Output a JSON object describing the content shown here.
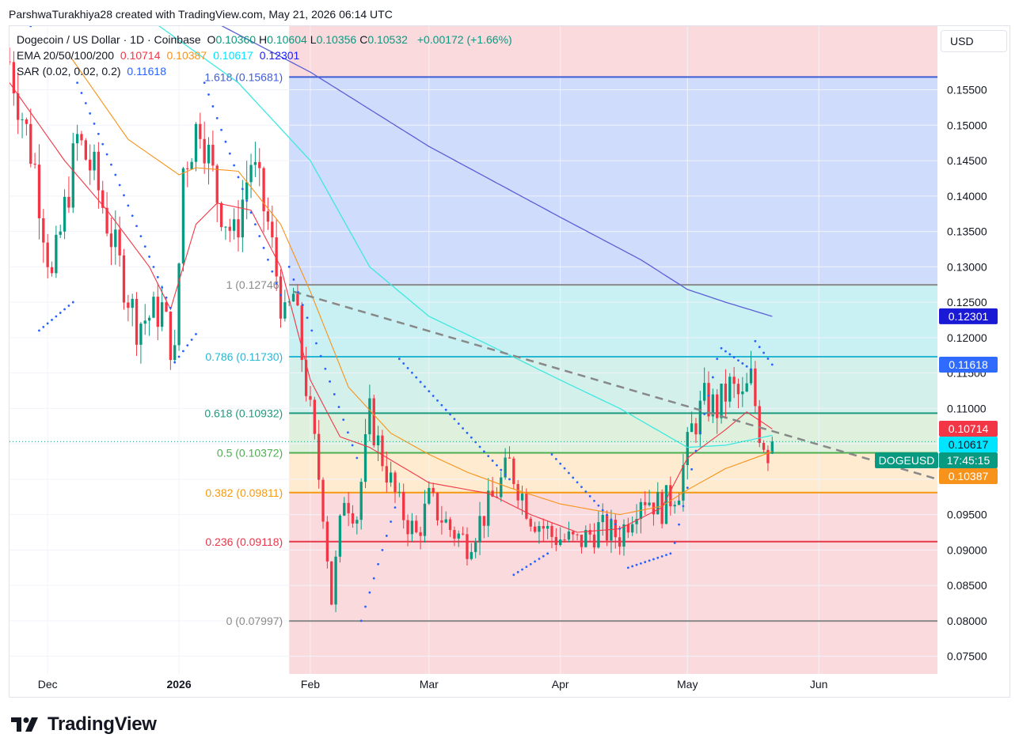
{
  "credit": "ParshwaTurakhiya28 created with TradingView.com, May 21, 2026 06:14 UTC",
  "legend": {
    "symbol": "Dogecoin / US Dollar · 1D · Coinbase",
    "ohlc": [
      {
        "k": "O",
        "v": "0.10360"
      },
      {
        "k": "H",
        "v": "0.10604"
      },
      {
        "k": "L",
        "v": "0.10356"
      },
      {
        "k": "C",
        "v": "0.10532"
      }
    ],
    "change": "+0.00172 (+1.66%)",
    "ema_label": "EMA 20/50/100/200",
    "ema_values": [
      {
        "v": "0.10714",
        "color": "#f23645"
      },
      {
        "v": "0.10387",
        "color": "#f7931a"
      },
      {
        "v": "0.10617",
        "color": "#00e5ff"
      },
      {
        "v": "0.12301",
        "color": "#1a1aff"
      }
    ],
    "sar_label": "SAR (0.02, 0.02, 0.2)",
    "sar_value": "0.11618"
  },
  "currency": "USD",
  "brand": "TradingView",
  "colors": {
    "up": "#089981",
    "down": "#f23645",
    "ema20": "#f23645",
    "ema50": "#f7931a",
    "ema100": "#3ee8e0",
    "ema200": "#5b5fd6",
    "sar": "#2962ff"
  },
  "chart_data": {
    "type": "candlestick",
    "title": "Dogecoin / US Dollar · 1D · Coinbase",
    "y_axis": {
      "ticks": [
        "0.15500",
        "0.15000",
        "0.14500",
        "0.14000",
        "0.13500",
        "0.13000",
        "0.12500",
        "0.12000",
        "0.11500",
        "0.11000",
        "0.10500",
        "0.10000",
        "0.09500",
        "0.09000",
        "0.08500",
        "0.08000",
        "0.07500"
      ],
      "range": [
        0.0725,
        0.164
      ]
    },
    "x_axis": {
      "ticks": [
        {
          "label": "Dec",
          "date": "2025-12-01"
        },
        {
          "label": "2026",
          "date": "2026-01-01",
          "bold": true
        },
        {
          "label": "Feb",
          "date": "2026-02-01"
        },
        {
          "label": "Mar",
          "date": "2026-03-01"
        },
        {
          "label": "Apr",
          "date": "2026-04-01"
        },
        {
          "label": "May",
          "date": "2026-05-01"
        },
        {
          "label": "Jun",
          "date": "2026-06-01"
        }
      ],
      "range": [
        "2025-11-22",
        "2026-06-29"
      ]
    },
    "fib": {
      "start_date": "2026-01-27",
      "levels": [
        {
          "ratio": "1.618",
          "value": 0.15681,
          "label": "1.618 (0.15681)",
          "color": "#3f5ed4",
          "fill": "#d0dcfb"
        },
        {
          "ratio": "1",
          "value": 0.12746,
          "label": "1 (0.12746)",
          "color": "#8a8a8a",
          "fill": "#e5e5e5"
        },
        {
          "ratio": "0.786",
          "value": 0.1173,
          "label": "0.786 (0.11730)",
          "color": "#26b7d4",
          "fill": "#c9f0f2"
        },
        {
          "ratio": "0.618",
          "value": 0.10932,
          "label": "0.618 (0.10932)",
          "color": "#1e9a7e",
          "fill": "#d3f0ea"
        },
        {
          "ratio": "0.5",
          "value": 0.10372,
          "label": "0.5 (0.10372)",
          "color": "#4caf50",
          "fill": "#dff1dc"
        },
        {
          "ratio": "0.382",
          "value": 0.09811,
          "label": "0.382 (0.09811)",
          "color": "#f59a10",
          "fill": "#feebd0"
        },
        {
          "ratio": "0.236",
          "value": 0.09118,
          "label": "0.236 (0.09118)",
          "color": "#e7374a",
          "fill": "#fbdadd"
        },
        {
          "ratio": "0",
          "value": 0.07997,
          "label": "0 (0.07997)",
          "color": "#8a8a8a",
          "fill": "#fbdadd"
        }
      ]
    },
    "trendline": {
      "from": {
        "date": "2026-01-28",
        "value": 0.1265
      },
      "to": {
        "date": "2026-06-29",
        "value": 0.1
      }
    },
    "ema200": [
      {
        "date": "2026-01-08",
        "value": 0.165
      },
      {
        "date": "2026-02-01",
        "value": 0.1575
      },
      {
        "date": "2026-03-01",
        "value": 0.147
      },
      {
        "date": "2026-04-01",
        "value": 0.137
      },
      {
        "date": "2026-04-20",
        "value": 0.131
      },
      {
        "date": "2026-05-01",
        "value": 0.1268
      },
      {
        "date": "2026-05-10",
        "value": 0.125
      },
      {
        "date": "2026-05-21",
        "value": 0.123
      }
    ],
    "ema100": [
      {
        "date": "2025-12-25",
        "value": 0.165
      },
      {
        "date": "2026-01-15",
        "value": 0.156
      },
      {
        "date": "2026-02-01",
        "value": 0.145
      },
      {
        "date": "2026-02-15",
        "value": 0.13
      },
      {
        "date": "2026-03-01",
        "value": 0.123
      },
      {
        "date": "2026-03-15",
        "value": 0.119
      },
      {
        "date": "2026-04-01",
        "value": 0.114
      },
      {
        "date": "2026-04-15",
        "value": 0.11
      },
      {
        "date": "2026-05-01",
        "value": 0.1045
      },
      {
        "date": "2026-05-10",
        "value": 0.1048
      },
      {
        "date": "2026-05-21",
        "value": 0.1062
      }
    ],
    "ema50": [
      {
        "date": "2025-12-06",
        "value": 0.16
      },
      {
        "date": "2025-12-20",
        "value": 0.148
      },
      {
        "date": "2026-01-01",
        "value": 0.143
      },
      {
        "date": "2026-01-05",
        "value": 0.144
      },
      {
        "date": "2026-01-15",
        "value": 0.1435
      },
      {
        "date": "2026-01-25",
        "value": 0.136
      },
      {
        "date": "2026-02-01",
        "value": 0.1265
      },
      {
        "date": "2026-02-10",
        "value": 0.113
      },
      {
        "date": "2026-02-20",
        "value": 0.1065
      },
      {
        "date": "2026-03-01",
        "value": 0.1035
      },
      {
        "date": "2026-03-10",
        "value": 0.101
      },
      {
        "date": "2026-03-20",
        "value": 0.0988
      },
      {
        "date": "2026-04-01",
        "value": 0.0965
      },
      {
        "date": "2026-04-15",
        "value": 0.095
      },
      {
        "date": "2026-04-25",
        "value": 0.0962
      },
      {
        "date": "2026-05-01",
        "value": 0.0985
      },
      {
        "date": "2026-05-10",
        "value": 0.1015
      },
      {
        "date": "2026-05-21",
        "value": 0.1039
      }
    ],
    "ema20": [
      {
        "date": "2025-11-22",
        "value": 0.156
      },
      {
        "date": "2025-12-05",
        "value": 0.145
      },
      {
        "date": "2025-12-15",
        "value": 0.138
      },
      {
        "date": "2025-12-25",
        "value": 0.13
      },
      {
        "date": "2025-12-30",
        "value": 0.124
      },
      {
        "date": "2026-01-05",
        "value": 0.136
      },
      {
        "date": "2026-01-10",
        "value": 0.139
      },
      {
        "date": "2026-01-18",
        "value": 0.138
      },
      {
        "date": "2026-01-25",
        "value": 0.13
      },
      {
        "date": "2026-02-01",
        "value": 0.114
      },
      {
        "date": "2026-02-08",
        "value": 0.106
      },
      {
        "date": "2026-02-15",
        "value": 0.1045
      },
      {
        "date": "2026-03-01",
        "value": 0.0995
      },
      {
        "date": "2026-03-15",
        "value": 0.098
      },
      {
        "date": "2026-03-25",
        "value": 0.095
      },
      {
        "date": "2026-04-05",
        "value": 0.0925
      },
      {
        "date": "2026-04-15",
        "value": 0.093
      },
      {
        "date": "2026-04-25",
        "value": 0.096
      },
      {
        "date": "2026-05-01",
        "value": 0.103
      },
      {
        "date": "2026-05-10",
        "value": 0.107
      },
      {
        "date": "2026-05-15",
        "value": 0.1095
      },
      {
        "date": "2026-05-21",
        "value": 0.1071
      }
    ],
    "sar_segments": [
      {
        "from": {
          "date": "2025-11-24",
          "value": 0.1655
        },
        "to": {
          "date": "2025-11-27",
          "value": 0.164
        },
        "n": 3
      },
      {
        "from": {
          "date": "2025-11-29",
          "value": 0.121
        },
        "to": {
          "date": "2025-12-07",
          "value": 0.125
        },
        "n": 9
      },
      {
        "from": {
          "date": "2025-12-08",
          "value": 0.156
        },
        "to": {
          "date": "2025-12-30",
          "value": 0.1242
        },
        "n": 23
      },
      {
        "from": {
          "date": "2025-12-31",
          "value": 0.1165
        },
        "to": {
          "date": "2026-01-05",
          "value": 0.1205
        },
        "n": 6
      },
      {
        "from": {
          "date": "2026-01-07",
          "value": 0.156
        },
        "to": {
          "date": "2026-01-25",
          "value": 0.126
        },
        "n": 19
      },
      {
        "from": {
          "date": "2026-01-27",
          "value": 0.13
        },
        "to": {
          "date": "2026-02-12",
          "value": 0.103
        },
        "n": 16
      },
      {
        "from": {
          "date": "2026-02-13",
          "value": 0.08
        },
        "to": {
          "date": "2026-02-21",
          "value": 0.096
        },
        "n": 9
      },
      {
        "from": {
          "date": "2026-02-22",
          "value": 0.117
        },
        "to": {
          "date": "2026-03-20",
          "value": 0.1
        },
        "n": 27
      },
      {
        "from": {
          "date": "2026-03-21",
          "value": 0.0865
        },
        "to": {
          "date": "2026-03-29",
          "value": 0.0895
        },
        "n": 9
      },
      {
        "from": {
          "date": "2026-03-30",
          "value": 0.1035
        },
        "to": {
          "date": "2026-04-15",
          "value": 0.093
        },
        "n": 17
      },
      {
        "from": {
          "date": "2026-04-17",
          "value": 0.0875
        },
        "to": {
          "date": "2026-04-27",
          "value": 0.0895
        },
        "n": 11
      },
      {
        "from": {
          "date": "2026-04-28",
          "value": 0.091
        },
        "to": {
          "date": "2026-05-08",
          "value": 0.117
        },
        "n": 11
      },
      {
        "from": {
          "date": "2026-05-09",
          "value": 0.1185
        },
        "to": {
          "date": "2026-05-16",
          "value": 0.1155
        },
        "n": 8
      },
      {
        "from": {
          "date": "2026-05-17",
          "value": 0.1195
        },
        "to": {
          "date": "2026-05-21",
          "value": 0.1162
        },
        "n": 5
      }
    ],
    "candle_anchors": [
      {
        "date": "2025-11-22",
        "value": 0.159
      },
      {
        "date": "2025-11-28",
        "value": 0.144
      },
      {
        "date": "2025-12-02",
        "value": 0.128
      },
      {
        "date": "2025-12-08",
        "value": 0.148
      },
      {
        "date": "2025-12-12",
        "value": 0.143
      },
      {
        "date": "2025-12-18",
        "value": 0.13
      },
      {
        "date": "2025-12-22",
        "value": 0.122
      },
      {
        "date": "2025-12-28",
        "value": 0.124
      },
      {
        "date": "2025-12-31",
        "value": 0.117
      },
      {
        "date": "2026-01-02",
        "value": 0.144
      },
      {
        "date": "2026-01-06",
        "value": 0.151
      },
      {
        "date": "2026-01-10",
        "value": 0.14
      },
      {
        "date": "2026-01-14",
        "value": 0.134
      },
      {
        "date": "2026-01-18",
        "value": 0.145
      },
      {
        "date": "2026-01-22",
        "value": 0.136
      },
      {
        "date": "2026-01-26",
        "value": 0.122
      },
      {
        "date": "2026-01-28",
        "value": 0.126
      },
      {
        "date": "2026-02-01",
        "value": 0.109
      },
      {
        "date": "2026-02-04",
        "value": 0.096
      },
      {
        "date": "2026-02-06",
        "value": 0.083
      },
      {
        "date": "2026-02-09",
        "value": 0.098
      },
      {
        "date": "2026-02-12",
        "value": 0.095
      },
      {
        "date": "2026-02-15",
        "value": 0.109
      },
      {
        "date": "2026-02-18",
        "value": 0.103
      },
      {
        "date": "2026-02-22",
        "value": 0.096
      },
      {
        "date": "2026-02-26",
        "value": 0.092
      },
      {
        "date": "2026-03-01",
        "value": 0.097
      },
      {
        "date": "2026-03-06",
        "value": 0.093
      },
      {
        "date": "2026-03-10",
        "value": 0.091
      },
      {
        "date": "2026-03-15",
        "value": 0.096
      },
      {
        "date": "2026-03-20",
        "value": 0.102
      },
      {
        "date": "2026-03-25",
        "value": 0.095
      },
      {
        "date": "2026-03-30",
        "value": 0.092
      },
      {
        "date": "2026-04-05",
        "value": 0.091
      },
      {
        "date": "2026-04-10",
        "value": 0.093
      },
      {
        "date": "2026-04-15",
        "value": 0.092
      },
      {
        "date": "2026-04-20",
        "value": 0.098
      },
      {
        "date": "2026-04-25",
        "value": 0.096
      },
      {
        "date": "2026-04-29",
        "value": 0.099
      },
      {
        "date": "2026-05-02",
        "value": 0.107
      },
      {
        "date": "2026-05-05",
        "value": 0.111
      },
      {
        "date": "2026-05-08",
        "value": 0.11
      },
      {
        "date": "2026-05-11",
        "value": 0.113
      },
      {
        "date": "2026-05-14",
        "value": 0.111
      },
      {
        "date": "2026-05-16",
        "value": 0.114
      },
      {
        "date": "2026-05-18",
        "value": 0.107
      },
      {
        "date": "2026-05-20",
        "value": 0.104
      },
      {
        "date": "2026-05-21",
        "value": 0.1053
      }
    ],
    "last": {
      "date": "2026-05-21",
      "open": 0.1036,
      "high": 0.10604,
      "low": 0.10356,
      "close": 0.10532
    },
    "price_badges": [
      {
        "value": 0.12301,
        "text": "0.12301",
        "bg": "#1a1ad6",
        "fg": "#ffffff"
      },
      {
        "value": 0.11618,
        "text": "0.11618",
        "bg": "#2f6bff",
        "fg": "#ffffff"
      },
      {
        "value": 0.10714,
        "text": "0.10714",
        "bg": "#f23645",
        "fg": "#ffffff"
      },
      {
        "value": 0.10617,
        "text": "0.10617",
        "bg": "#00e5ff",
        "fg": "#131722"
      },
      {
        "value": 0.10532,
        "text": "17:45:15",
        "bg": "#089981",
        "fg": "#ffffff",
        "symbol": "DOGEUSD"
      },
      {
        "value": 0.10387,
        "text": "0.10387",
        "bg": "#f7931a",
        "fg": "#ffffff"
      }
    ]
  }
}
